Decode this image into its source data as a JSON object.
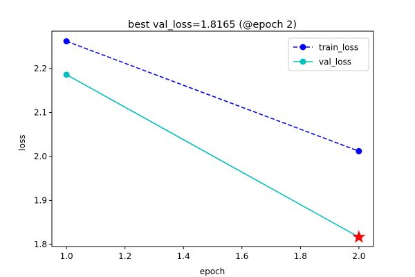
{
  "chart_data": {
    "type": "line",
    "title": "best val_loss=1.8165 (@epoch 2)",
    "xlabel": "epoch",
    "ylabel": "loss",
    "xlim": [
      0.95,
      2.05
    ],
    "ylim": [
      1.795,
      2.285
    ],
    "xticks": [
      1.0,
      1.2,
      1.4,
      1.6,
      1.8,
      2.0
    ],
    "xtick_labels": [
      "1.0",
      "1.2",
      "1.4",
      "1.6",
      "1.8",
      "2.0"
    ],
    "yticks": [
      1.8,
      1.9,
      2.0,
      2.1,
      2.2
    ],
    "ytick_labels": [
      "1.8",
      "1.9",
      "2.0",
      "2.1",
      "2.2"
    ],
    "grid": false,
    "legend_position": "top-right",
    "x": [
      1,
      2
    ],
    "series": [
      {
        "name": "train_loss",
        "values": [
          2.262,
          2.012
        ],
        "color": "#0000ff",
        "linestyle": "dashed",
        "marker": "circle"
      },
      {
        "name": "val_loss",
        "values": [
          2.186,
          1.8165
        ],
        "color": "#00bfbf",
        "linestyle": "solid",
        "marker": "circle"
      }
    ],
    "annotations": [
      {
        "type": "star",
        "x": 2,
        "y": 1.8165,
        "color": "#ff0000"
      }
    ]
  }
}
